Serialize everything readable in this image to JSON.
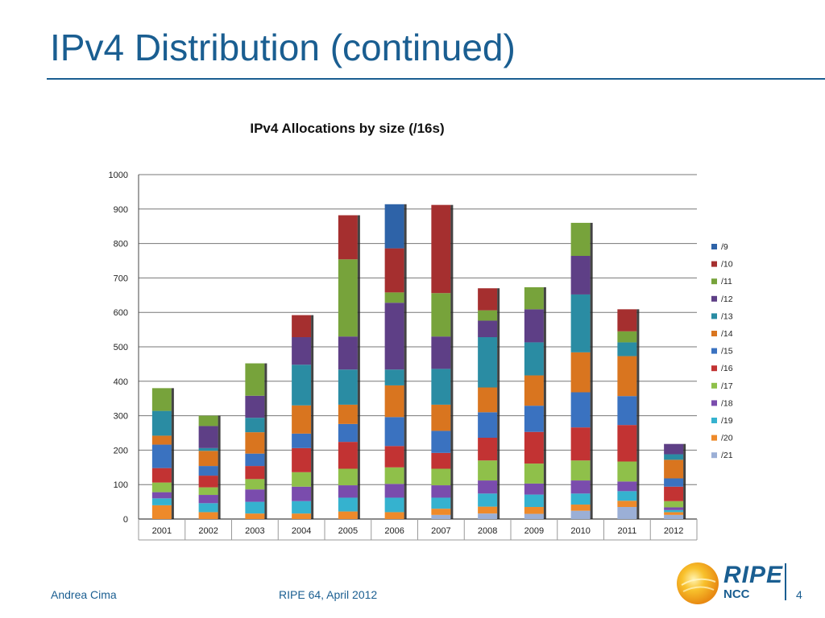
{
  "slide": {
    "title": "IPv4 Distribution (continued)",
    "author": "Andrea Cima",
    "event": "RIPE 64, April 2012",
    "page_number": "4",
    "logo_text": "RIPE",
    "logo_subtext": "NCC"
  },
  "colors": {
    "title": "#1a5e91",
    "/9": "#2e63a8",
    "/10": "#a52f2f",
    "/11": "#77a33b",
    "/12": "#5e3f86",
    "/13": "#2a8ca3",
    "/14": "#d9751f",
    "/15": "#3a72c0",
    "/16": "#c23333",
    "/17": "#8fc04a",
    "/18": "#7a4cad",
    "/19": "#35b2cf",
    "/20": "#ee8a2a",
    "/21": "#9bafd6"
  },
  "chart_data": {
    "type": "bar",
    "stacked": true,
    "title": "IPv4 Allocations by size (/16s)",
    "xlabel": "",
    "ylabel": "",
    "ylim": [
      0,
      1000
    ],
    "yticks": [
      0,
      100,
      200,
      300,
      400,
      500,
      600,
      700,
      800,
      900,
      1000
    ],
    "grid": true,
    "legend_position": "right",
    "categories": [
      "2001",
      "2002",
      "2003",
      "2004",
      "2005",
      "2006",
      "2007",
      "2008",
      "2009",
      "2010",
      "2011",
      "2012"
    ],
    "series": [
      {
        "name": "/21",
        "values": [
          0,
          0,
          0,
          0,
          0,
          0,
          12,
          16,
          15,
          24,
          35,
          12
        ]
      },
      {
        "name": "/20",
        "values": [
          40,
          20,
          16,
          16,
          22,
          20,
          18,
          20,
          20,
          18,
          18,
          8
        ]
      },
      {
        "name": "/19",
        "values": [
          20,
          26,
          34,
          36,
          40,
          42,
          32,
          38,
          36,
          32,
          28,
          6
        ]
      },
      {
        "name": "/18",
        "values": [
          18,
          24,
          36,
          42,
          36,
          40,
          36,
          38,
          32,
          38,
          28,
          8
        ]
      },
      {
        "name": "/17",
        "values": [
          28,
          22,
          30,
          42,
          48,
          48,
          48,
          58,
          58,
          58,
          58,
          18
        ]
      },
      {
        "name": "/16",
        "values": [
          42,
          34,
          38,
          70,
          78,
          62,
          46,
          66,
          92,
          96,
          106,
          42
        ]
      },
      {
        "name": "/15",
        "values": [
          68,
          28,
          36,
          42,
          52,
          84,
          64,
          74,
          76,
          102,
          84,
          24
        ]
      },
      {
        "name": "/14",
        "values": [
          26,
          44,
          62,
          82,
          56,
          92,
          76,
          72,
          88,
          116,
          116,
          54
        ]
      },
      {
        "name": "/13",
        "values": [
          72,
          8,
          42,
          118,
          102,
          46,
          104,
          146,
          96,
          168,
          40,
          16
        ]
      },
      {
        "name": "/12",
        "values": [
          0,
          64,
          64,
          80,
          96,
          194,
          94,
          48,
          96,
          112,
          0,
          30
        ]
      },
      {
        "name": "/11",
        "values": [
          66,
          30,
          94,
          0,
          224,
          30,
          126,
          30,
          64,
          96,
          32,
          0
        ]
      },
      {
        "name": "/10",
        "values": [
          0,
          0,
          0,
          64,
          128,
          128,
          256,
          64,
          0,
          0,
          64,
          0
        ]
      },
      {
        "name": "/9",
        "values": [
          0,
          0,
          0,
          0,
          0,
          128,
          0,
          0,
          0,
          0,
          0,
          0
        ]
      }
    ],
    "legend": [
      "/9",
      "/10",
      "/11",
      "/12",
      "/13",
      "/14",
      "/15",
      "/16",
      "/17",
      "/18",
      "/19",
      "/20",
      "/21"
    ]
  }
}
